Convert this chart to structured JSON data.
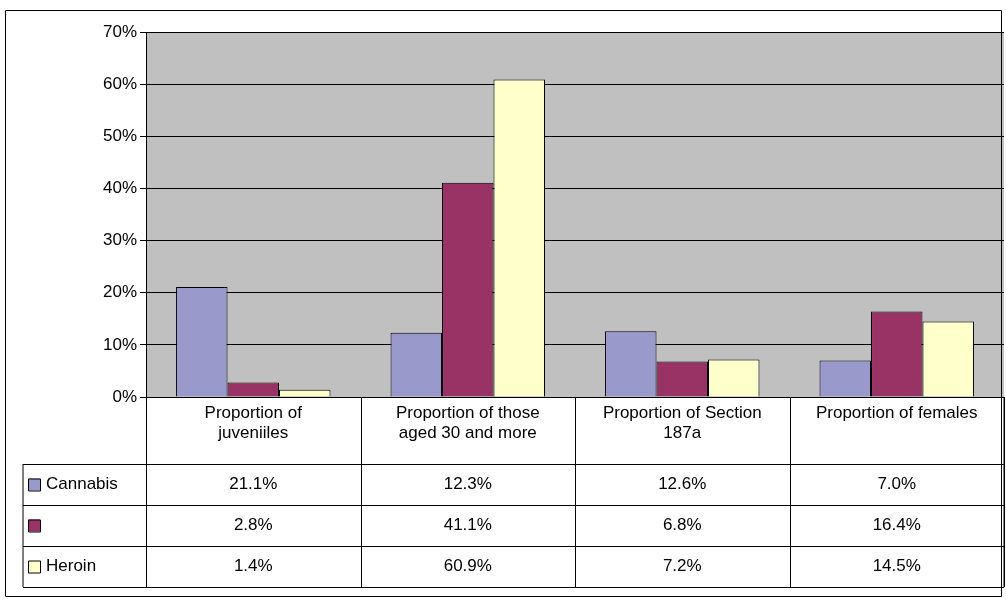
{
  "chart_data": {
    "type": "bar",
    "categories": [
      "Proportion of juveniiles",
      "Proportion of those aged 30 and more",
      "Proportion of Section 187a",
      "Proportion of females"
    ],
    "series": [
      {
        "name": "Cannabis",
        "color": "#9999cc",
        "values": [
          21.1,
          12.3,
          12.6,
          7.0
        ],
        "value_labels": [
          "21.1%",
          "12.3%",
          "12.6%",
          "7.0%"
        ]
      },
      {
        "color": "#993366",
        "values": [
          2.8,
          41.1,
          6.8,
          16.4
        ],
        "value_labels": [
          "2.8%",
          "41.1%",
          "6.8%",
          "16.4%"
        ]
      },
      {
        "name": "Heroin",
        "color": "#ffffcc",
        "values": [
          1.4,
          60.9,
          7.2,
          14.5
        ],
        "value_labels": [
          "1.4%",
          "60.9%",
          "7.2%",
          "14.5%"
        ]
      }
    ],
    "ylim": [
      0,
      70
    ],
    "yticks": [
      {
        "value": 0,
        "label": "0%"
      },
      {
        "value": 10,
        "label": "10%"
      },
      {
        "value": 20,
        "label": "20%"
      },
      {
        "value": 30,
        "label": "30%"
      },
      {
        "value": 40,
        "label": "40%"
      },
      {
        "value": 50,
        "label": "50%"
      },
      {
        "value": 60,
        "label": "60%"
      },
      {
        "value": 70,
        "label": "70%"
      }
    ],
    "grid": "y",
    "legend": "bottom"
  }
}
